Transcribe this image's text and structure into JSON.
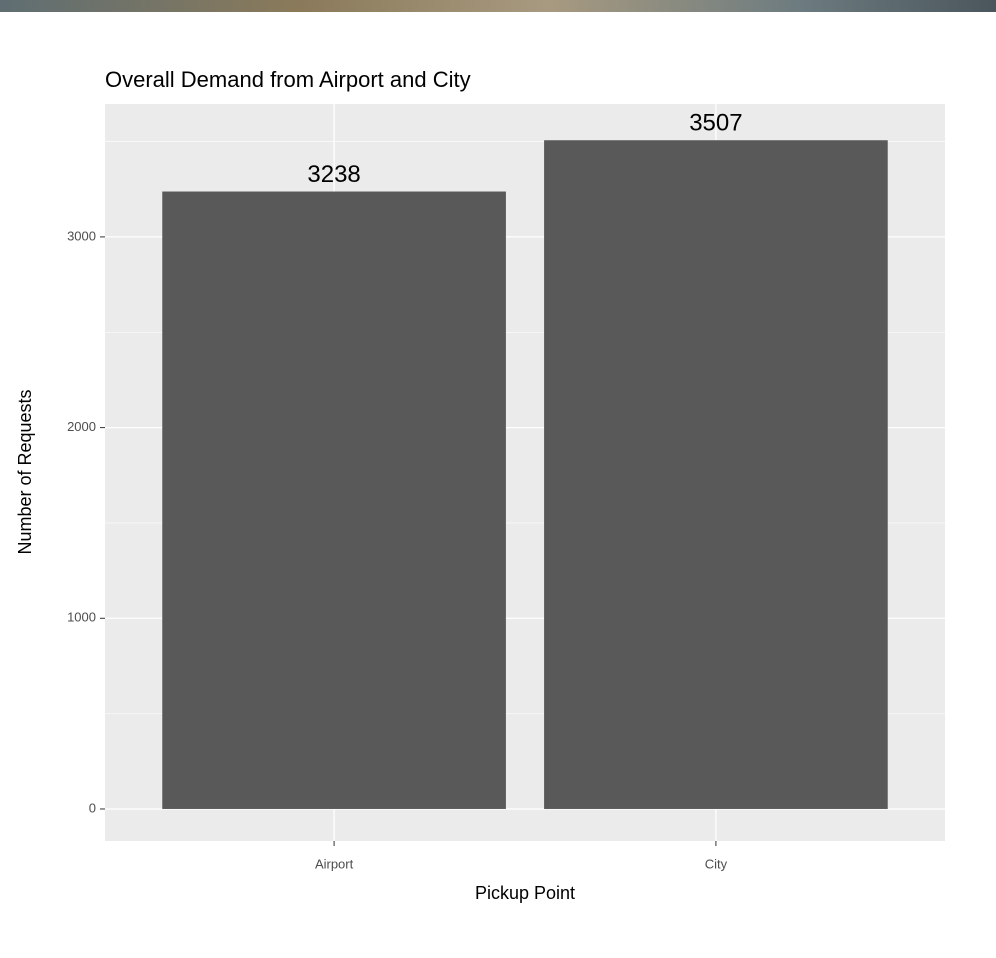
{
  "chart_data": {
    "type": "bar",
    "title": "Overall Demand from Airport and City",
    "x_label": "Pickup Point",
    "y_label": "Number of Requests",
    "categories": [
      "Airport",
      "City"
    ],
    "values": [
      3238,
      3507
    ],
    "color": "#595959",
    "ylim": [
      -168,
      3697
    ],
    "yticks": [
      0,
      1000,
      2000,
      3000
    ],
    "grid": true
  }
}
